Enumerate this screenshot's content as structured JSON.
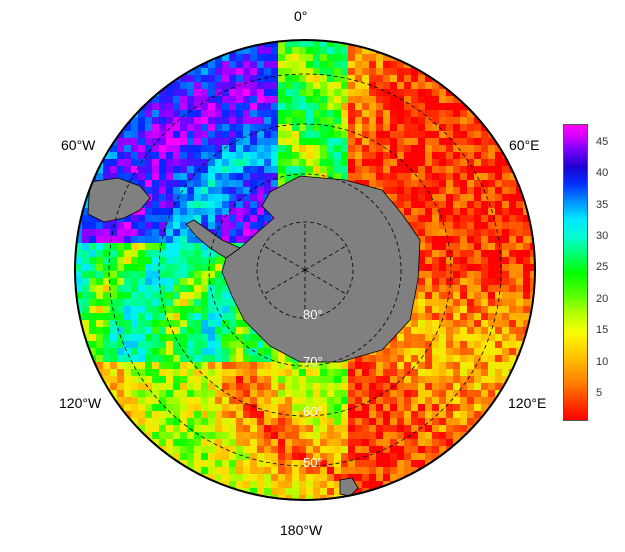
{
  "map": {
    "projection": "south-polar-stereographic",
    "longitude_labels": {
      "top": "0°",
      "bottom": "180°W",
      "upper_left": "60°W",
      "upper_right": "60°E",
      "lower_left": "120°W",
      "lower_right": "120°E"
    },
    "latitude_labels": [
      "80°",
      "70°",
      "60°",
      "50°"
    ],
    "land_color": "#808080",
    "graticule_style": "dashed"
  },
  "colorbar": {
    "min": 1,
    "max": 48,
    "ticks": [
      "5",
      "10",
      "15",
      "20",
      "25",
      "30",
      "35",
      "40",
      "45"
    ],
    "tick_values": [
      5,
      10,
      15,
      20,
      25,
      30,
      35,
      40,
      45
    ],
    "colormap": "rainbow",
    "low_color": "#ff0000",
    "high_color": "#ff00ff"
  }
}
